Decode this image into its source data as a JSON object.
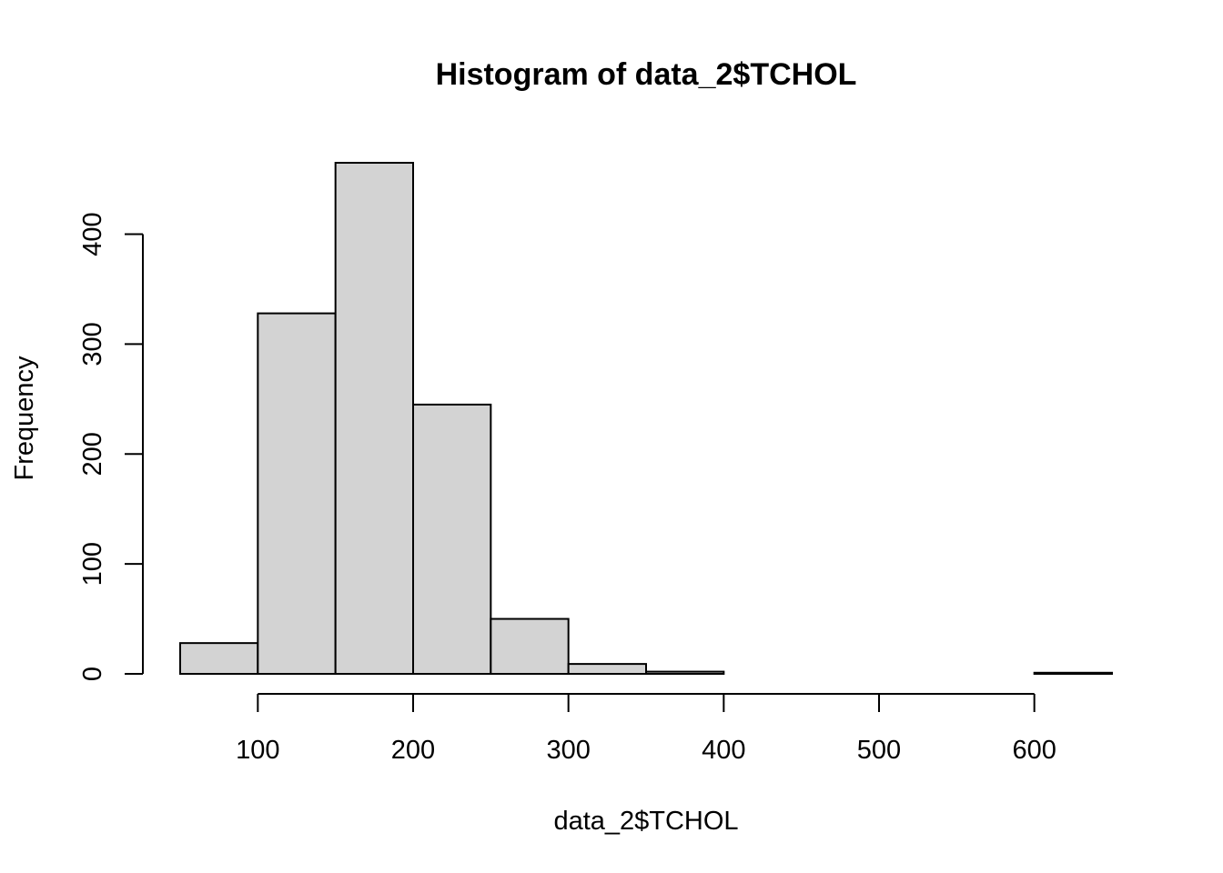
{
  "chart_data": {
    "type": "bar",
    "title": "Histogram of data_2$TCHOL",
    "xlabel": "data_2$TCHOL",
    "ylabel": "Frequency",
    "bins": [
      {
        "from": 50,
        "to": 100,
        "count": 28
      },
      {
        "from": 100,
        "to": 150,
        "count": 328
      },
      {
        "from": 150,
        "to": 200,
        "count": 465
      },
      {
        "from": 200,
        "to": 250,
        "count": 245
      },
      {
        "from": 250,
        "to": 300,
        "count": 50
      },
      {
        "from": 300,
        "to": 350,
        "count": 9
      },
      {
        "from": 350,
        "to": 400,
        "count": 2
      },
      {
        "from": 400,
        "to": 450,
        "count": 0
      },
      {
        "from": 450,
        "to": 500,
        "count": 0
      },
      {
        "from": 500,
        "to": 550,
        "count": 0
      },
      {
        "from": 550,
        "to": 600,
        "count": 0
      },
      {
        "from": 600,
        "to": 650,
        "count": 1
      }
    ],
    "x_ticks": [
      100,
      200,
      300,
      400,
      500,
      600
    ],
    "y_ticks": [
      0,
      100,
      200,
      300,
      400
    ],
    "xlim": [
      50,
      650
    ],
    "ylim": [
      0,
      465
    ],
    "grid": false,
    "bar_color": "#d3d3d3",
    "border_color": "#000000"
  }
}
